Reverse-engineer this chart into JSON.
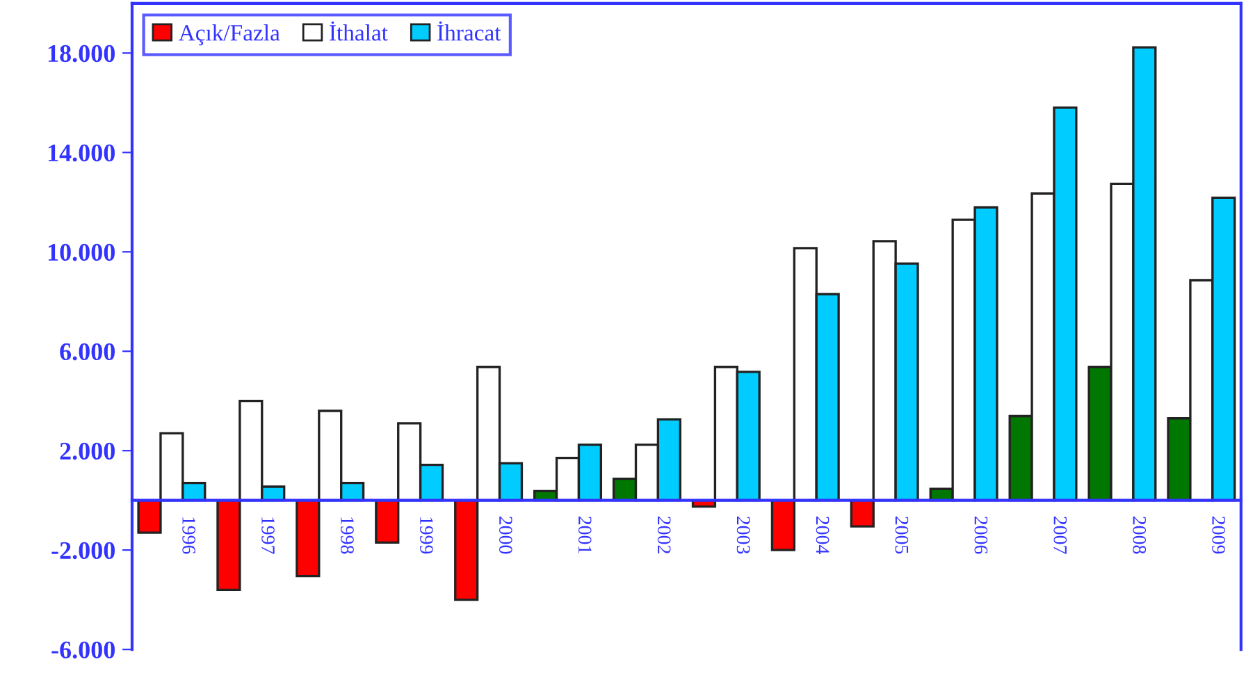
{
  "chart_data": {
    "type": "bar",
    "categories": [
      "1996",
      "1997",
      "1998",
      "1999",
      "2000",
      "2001",
      "2002",
      "2003",
      "2004",
      "2005",
      "2006",
      "2007",
      "2008",
      "2009"
    ],
    "series": [
      {
        "name": "Açık/Fazla",
        "color": "#ff0000",
        "colors": [
          "#ff0000",
          "#ff0000",
          "#ff0000",
          "#ff0000",
          "#ff0000",
          "#007700",
          "#007700",
          "#ff0000",
          "#ff0000",
          "#ff0000",
          "#007700",
          "#007700",
          "#007700",
          "#007700"
        ],
        "values": [
          -1300,
          -3600,
          -3050,
          -1700,
          -4000,
          370,
          870,
          -250,
          -2000,
          -1050,
          460,
          3390,
          5370,
          3300
        ]
      },
      {
        "name": "İthalat",
        "color": "#ffffff",
        "values": [
          2700,
          4000,
          3600,
          3100,
          5370,
          1710,
          2240,
          5370,
          10150,
          10430,
          11290,
          12350,
          12740,
          8860
        ]
      },
      {
        "name": "İhracat",
        "color": "#00ccff",
        "values": [
          700,
          550,
          700,
          1430,
          1490,
          2240,
          3260,
          5170,
          8300,
          9530,
          11790,
          15800,
          18230,
          12180
        ]
      }
    ],
    "ylim": [
      -6000,
      20000
    ],
    "yticks": [
      {
        "value": -6000,
        "label": "-6.000"
      },
      {
        "value": -2000,
        "label": "-2.000"
      },
      {
        "value": 2000,
        "label": "2.000"
      },
      {
        "value": 6000,
        "label": "6.000"
      },
      {
        "value": 10000,
        "label": "10.000"
      },
      {
        "value": 14000,
        "label": "14.000"
      },
      {
        "value": 18000,
        "label": "18.000"
      }
    ],
    "grid": false,
    "legend": "top left"
  }
}
